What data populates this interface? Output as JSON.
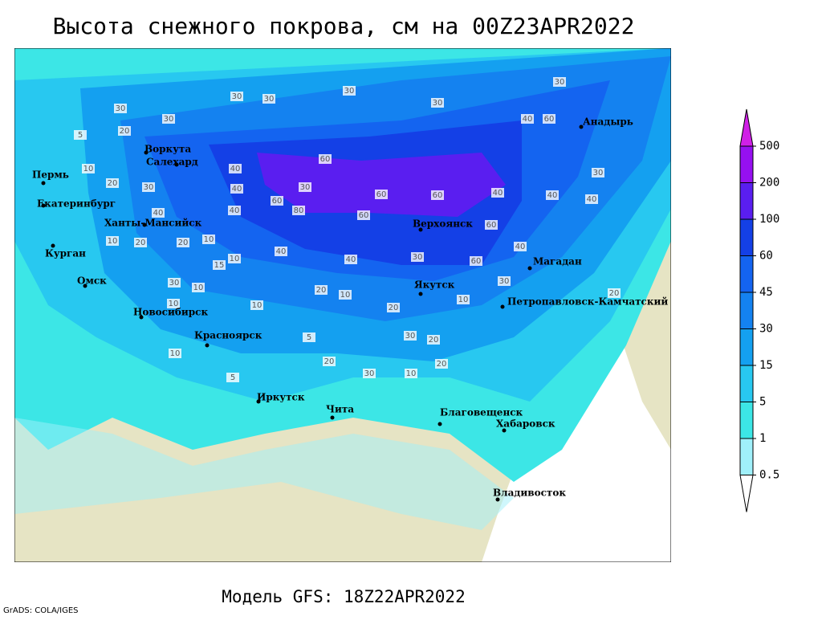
{
  "title": "Высота снежного покрова, см на 00Z23APR2022",
  "cities": [
    "Пермь",
    "Екатеринбург",
    "Ханты-Мансийск",
    "Курган",
    "Омск",
    "Воркута",
    "Салехард",
    "Новосибирск",
    "Красноярск",
    "Иркутск",
    "Чита",
    "Благовещенск",
    "Хабаровск",
    "Владивосток",
    "Якутск",
    "Верхоянск",
    "Магадан",
    "Петропавловск-Камчатский",
    "Анадырь"
  ],
  "contour_labels": [
    30,
    30,
    30,
    30,
    30,
    60,
    40,
    30,
    40,
    40,
    40,
    60,
    60,
    60,
    30,
    60,
    60,
    80,
    60,
    40,
    60,
    30,
    40,
    40,
    40,
    40,
    30,
    20,
    10,
    20,
    10,
    20,
    10,
    10,
    15,
    30,
    10,
    10,
    10,
    20,
    10,
    20,
    30,
    20,
    10,
    30,
    20,
    20,
    30,
    10,
    20,
    10,
    5,
    5,
    5,
    20,
    30,
    30,
    40,
    40
  ],
  "legend": {
    "levels": [
      0.5,
      1,
      5,
      15,
      30,
      45,
      60,
      100,
      200,
      500
    ],
    "colors": [
      "#ffffff",
      "#a0f0fa",
      "#3ce6e6",
      "#28c8f0",
      "#14a0f0",
      "#1482f0",
      "#1464f0",
      "#1440e6",
      "#5a1ef0",
      "#9610f0",
      "#d020e6"
    ]
  },
  "footer": "Модель GFS: 18Z22APR2022",
  "credit": "GrADS: COLA/IGES"
}
